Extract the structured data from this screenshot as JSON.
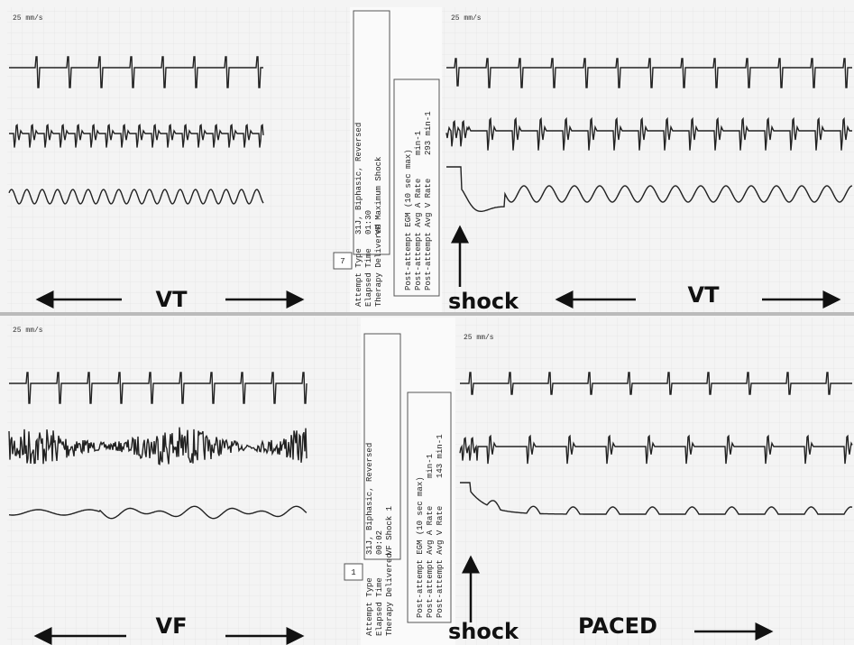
{
  "strips": [
    {
      "speed": "25 mm/s",
      "rhythm": "VT"
    },
    {
      "speed": "25 mm/s",
      "rhythm": "VT",
      "event": "shock"
    },
    {
      "speed": "25 mm/s",
      "rhythm": "VF"
    },
    {
      "speed": "25 mm/s",
      "rhythm": "PACED",
      "event": "shock"
    }
  ],
  "reports": [
    {
      "attempt": "7",
      "fields": [
        "Attempt Type",
        "Elapsed Time",
        "Therapy Delivered"
      ],
      "values": [
        "31J, Biphasic, Reversed",
        "01:30",
        "VF Maximum Shock"
      ],
      "egm": [
        "Post-attempt EGM (10 sec max)",
        "Post-attempt Avg A Rate",
        "Post-attempt Avg V Rate"
      ],
      "rates": [
        "min-1",
        "293 min-1"
      ]
    },
    {
      "attempt": "1",
      "fields": [
        "Attempt Type",
        "Elapsed Time",
        "Therapy Delivered"
      ],
      "values": [
        "31J, Biphasic, Reversed",
        "00:02",
        "VF Shock 1"
      ],
      "egm": [
        "Post-attempt EGM (10 sec max)",
        "Post-attempt Avg A Rate",
        "Post-attempt Avg V Rate"
      ],
      "rates": [
        "min-1",
        "143 min-1"
      ]
    }
  ]
}
